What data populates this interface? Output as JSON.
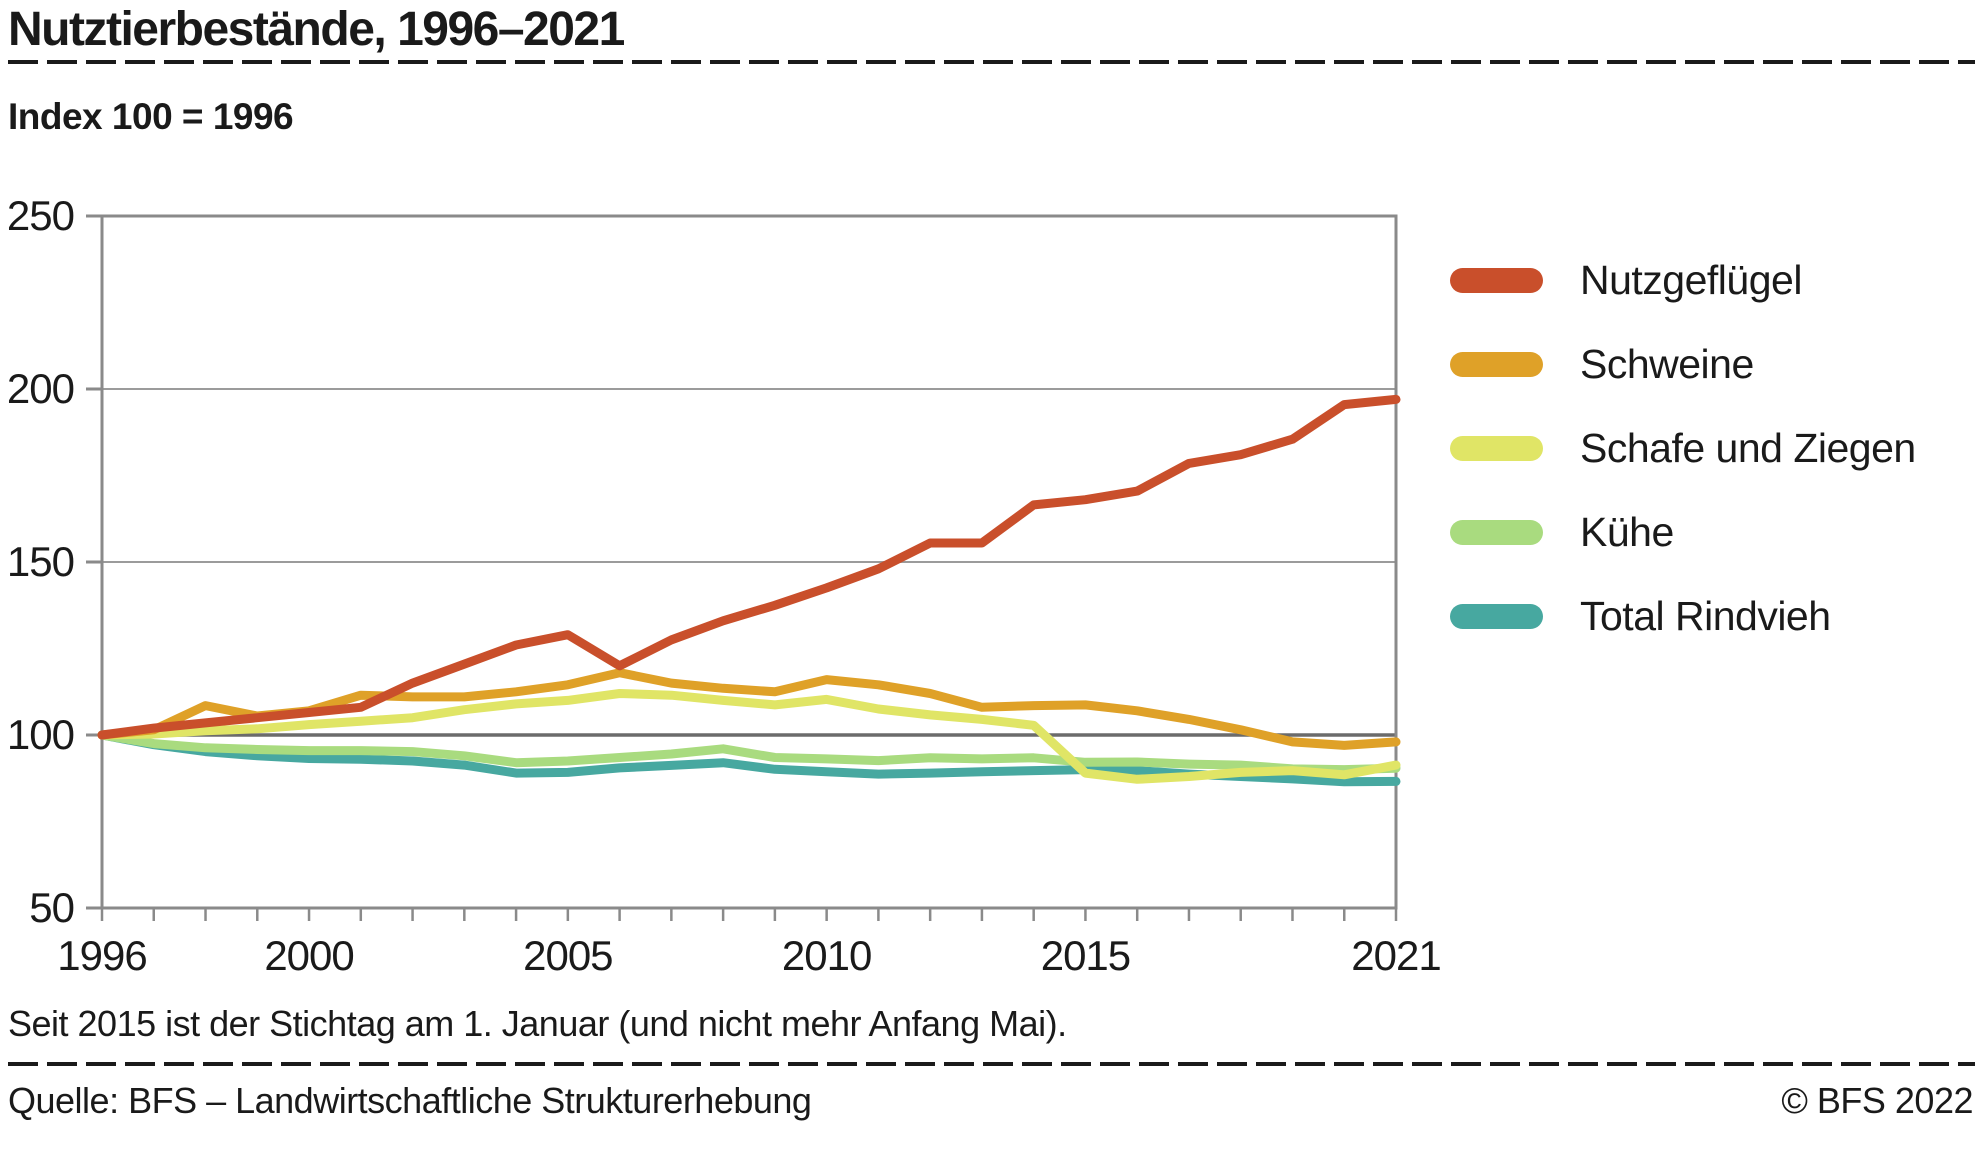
{
  "title": "Nutztierbestände, 1996–2021",
  "subtitle": "Index 100 = 1996",
  "footnote": "Seit 2015 ist der Stichtag am 1. Januar (und nicht mehr Anfang Mai).",
  "footer": {
    "source": "Quelle: BFS – Landwirtschaftliche Strukturerhebung",
    "copyright": "© BFS 2022"
  },
  "axis_colors": {
    "frame": "#8a8a8a",
    "grid": "#9b9b9b",
    "baseline": "#6b6b6b",
    "text": "#1a1a1a"
  },
  "chart_data": {
    "type": "line",
    "title": "Nutztierbestände, 1996–2021",
    "subtitle": "Index 100 = 1996",
    "xlabel": "",
    "ylabel": "Index 100 = 1996",
    "ylim": [
      50,
      250
    ],
    "yticks": [
      50,
      100,
      150,
      200,
      250
    ],
    "baseline_value": 100,
    "grid": "horizontal",
    "legend_position": "right",
    "x": [
      1996,
      1997,
      1998,
      1999,
      2000,
      2001,
      2002,
      2003,
      2004,
      2005,
      2006,
      2007,
      2008,
      2009,
      2010,
      2011,
      2012,
      2013,
      2014,
      2015,
      2016,
      2017,
      2018,
      2019,
      2020,
      2021
    ],
    "xtick_labels": [
      1996,
      2000,
      2005,
      2010,
      2015,
      2021
    ],
    "series": [
      {
        "name": "Nutzgeflügel",
        "color": "#c94f2b",
        "values": [
          100,
          102,
          103.5,
          105,
          106.5,
          108,
          115,
          120.5,
          126,
          129,
          120,
          127.5,
          133,
          137.5,
          142.5,
          148,
          155.5,
          155.5,
          166.5,
          168,
          170.5,
          178.5,
          181,
          185.5,
          195.5,
          197
        ]
      },
      {
        "name": "Schweine",
        "color": "#dfa128",
        "values": [
          100,
          101.5,
          108.5,
          105.5,
          107,
          111.5,
          111,
          111,
          112.5,
          114.5,
          118,
          115,
          113.5,
          112.5,
          116,
          114.5,
          112,
          108,
          108.5,
          108.7,
          107,
          104.5,
          101.5,
          98,
          97,
          98
        ]
      },
      {
        "name": "Schafe und Ziegen",
        "color": "#e0e566",
        "values": [
          100,
          100.3,
          101.2,
          101.8,
          103,
          104,
          105,
          107.3,
          109,
          110,
          112,
          111.5,
          110,
          108.7,
          110.3,
          107.5,
          105.8,
          104.5,
          102.8,
          89,
          87.2,
          88,
          89.2,
          89.7,
          88.5,
          91.3
        ]
      },
      {
        "name": "Kühe",
        "color": "#a9db7f",
        "values": [
          100,
          97.5,
          96.3,
          95.8,
          95.5,
          95.5,
          95.2,
          94,
          92,
          92.5,
          93.5,
          94.5,
          96,
          93.5,
          93.1,
          92.6,
          93.4,
          93.1,
          93.4,
          92.1,
          92.2,
          91.6,
          91.3,
          90.2,
          90,
          90.4
        ]
      },
      {
        "name": "Total Rindvieh",
        "color": "#47a8a0",
        "values": [
          100,
          97.2,
          95.2,
          94,
          93.2,
          93,
          92.5,
          91.3,
          89,
          89.2,
          90.5,
          91.2,
          92,
          90.1,
          89.4,
          88.7,
          89,
          89.4,
          89.7,
          90,
          89.7,
          88.7,
          88,
          87.3,
          86.5,
          86.6
        ]
      }
    ]
  }
}
